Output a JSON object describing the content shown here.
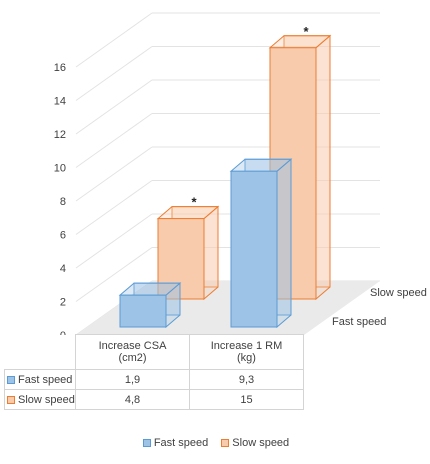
{
  "chart_data": {
    "type": "bar",
    "style": "3d-column",
    "categories": [
      "Increase CSA\n(cm2)",
      "Increase 1 RM\n(kg)"
    ],
    "series": [
      {
        "name": "Fast speed",
        "values": [
          1.9,
          9.3
        ],
        "color": "#9DC3E6",
        "edge": "#5B9BD5"
      },
      {
        "name": "Slow speed",
        "values": [
          4.8,
          15
        ],
        "color": "#F8CBAD",
        "edge": "#ED7D31"
      }
    ],
    "ylim": [
      0,
      16
    ],
    "yticks": [
      0,
      2,
      4,
      6,
      8,
      10,
      12,
      14,
      16
    ],
    "grid": true,
    "legend": "bottom",
    "annotations": [
      "*",
      "*"
    ],
    "data_table": {
      "rows": [
        {
          "label": "Fast speed",
          "values": [
            "1,9",
            "9,3"
          ]
        },
        {
          "label": "Slow speed",
          "values": [
            "4,8",
            "15"
          ]
        }
      ]
    }
  }
}
